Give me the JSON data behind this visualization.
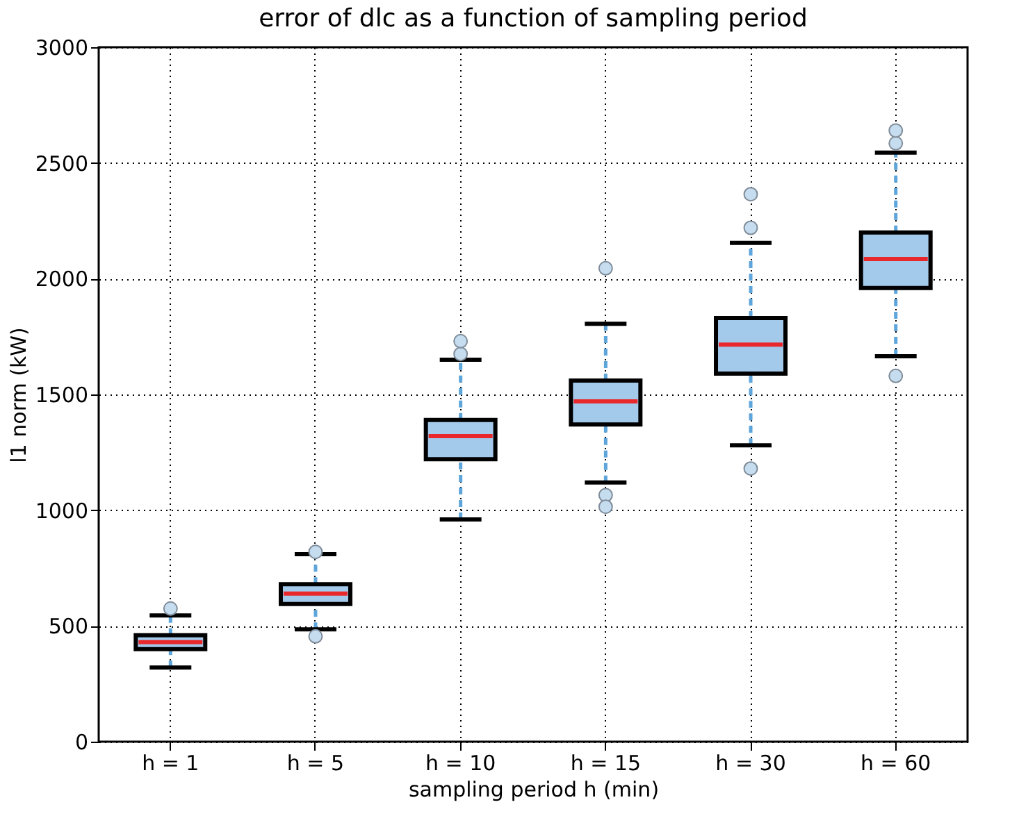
{
  "chart_data": {
    "type": "box",
    "title": "error of dlc as a function of sampling period",
    "xlabel": "sampling period h (min)",
    "ylabel": "l1 norm (kW)",
    "categories": [
      "h = 1",
      "h = 5",
      "h = 10",
      "h = 15",
      "h = 30",
      "h = 60"
    ],
    "series": [
      {
        "color": "#a3c9eb",
        "boxes": [
          {
            "low": 320,
            "q1": 400,
            "median": 430,
            "q3": 460,
            "high": 545,
            "outliers": [
              575
            ]
          },
          {
            "low": 485,
            "q1": 595,
            "median": 640,
            "q3": 680,
            "high": 810,
            "outliers": [
              455,
              820
            ]
          },
          {
            "low": 960,
            "q1": 1220,
            "median": 1320,
            "q3": 1390,
            "high": 1650,
            "outliers": [
              1675,
              1730
            ]
          },
          {
            "low": 1120,
            "q1": 1370,
            "median": 1470,
            "q3": 1560,
            "high": 1805,
            "outliers": [
              1065,
              1015,
              2045
            ]
          },
          {
            "low": 1280,
            "q1": 1590,
            "median": 1715,
            "q3": 1830,
            "high": 2155,
            "outliers": [
              1180,
              2220,
              2365
            ]
          },
          {
            "low": 1665,
            "q1": 1960,
            "median": 2085,
            "q3": 2200,
            "high": 2545,
            "outliers": [
              1580,
              2585,
              2640
            ]
          }
        ]
      }
    ],
    "ylim": [
      0,
      3000
    ],
    "yticks": [
      0,
      500,
      1000,
      1500,
      2000,
      2500,
      3000
    ],
    "grid": true
  }
}
